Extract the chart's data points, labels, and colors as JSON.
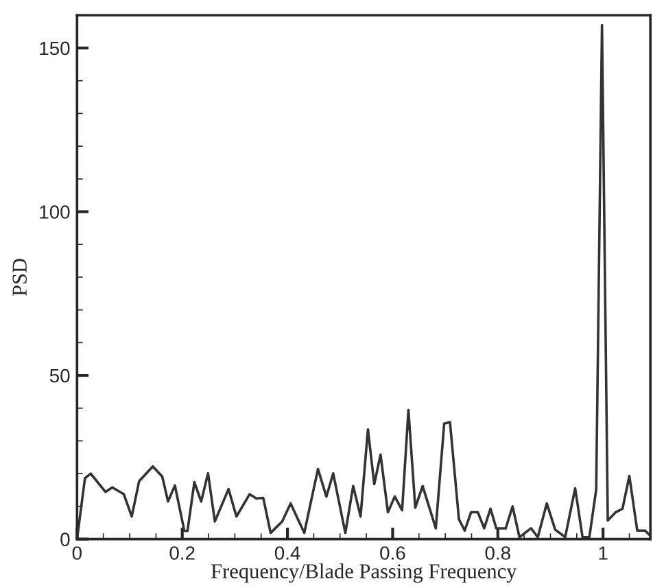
{
  "chart_data": {
    "type": "line",
    "xlabel": "Frequency/Blade Passing Frequency",
    "ylabel": "PSD",
    "x": [
      0.0,
      0.015,
      0.026,
      0.054,
      0.067,
      0.089,
      0.104,
      0.118,
      0.144,
      0.162,
      0.173,
      0.186,
      0.204,
      0.21,
      0.223,
      0.236,
      0.249,
      0.262,
      0.288,
      0.303,
      0.328,
      0.341,
      0.354,
      0.368,
      0.39,
      0.406,
      0.432,
      0.458,
      0.474,
      0.487,
      0.51,
      0.525,
      0.539,
      0.553,
      0.565,
      0.577,
      0.591,
      0.604,
      0.618,
      0.63,
      0.643,
      0.657,
      0.682,
      0.698,
      0.709,
      0.726,
      0.737,
      0.749,
      0.762,
      0.774,
      0.786,
      0.797,
      0.815,
      0.828,
      0.841,
      0.863,
      0.876,
      0.893,
      0.909,
      0.928,
      0.947,
      0.961,
      0.974,
      0.987,
      0.998,
      1.009,
      1.024,
      1.037,
      1.05,
      1.065,
      1.08,
      1.089
    ],
    "series": [
      {
        "color": "#333333",
        "values": [
          0,
          18.6,
          20,
          14.4,
          15.8,
          13.7,
          6.9,
          17.7,
          22.2,
          19.1,
          11.5,
          16.4,
          2.5,
          2.5,
          17.4,
          11.5,
          20.1,
          5.4,
          15.3,
          6.9,
          13.7,
          12.4,
          12.6,
          1.9,
          5.4,
          10.9,
          1.9,
          21.4,
          13.0,
          20.1,
          1.9,
          16.2,
          6.9,
          33.5,
          16.8,
          25.8,
          8.2,
          13.0,
          8.8,
          39.4,
          9.6,
          16.2,
          3.3,
          35.3,
          35.7,
          6.1,
          2.6,
          8.2,
          8.2,
          3.3,
          9.3,
          3.3,
          3.3,
          10.0,
          0.6,
          3.3,
          0.6,
          10.9,
          2.9,
          0.6,
          15.5,
          0.6,
          0.6,
          15.2,
          157,
          5.7,
          8.2,
          9.3,
          19.3,
          2.6,
          2.6,
          1.2
        ]
      }
    ],
    "xlim": [
      0,
      1.09
    ],
    "ylim": [
      0,
      160
    ],
    "xticks": [
      0,
      0.2,
      0.4,
      0.6,
      0.8,
      1
    ],
    "yticks": [
      0,
      50,
      100,
      150
    ],
    "marker": "none",
    "line_style": "solid"
  }
}
